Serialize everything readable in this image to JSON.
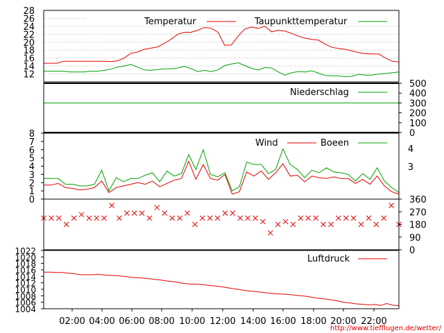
{
  "chart_data": [
    {
      "type": "line",
      "panel": "temperature",
      "ylim": [
        10,
        28
      ],
      "yticks": [
        12,
        14,
        16,
        18,
        20,
        22,
        24,
        26,
        28
      ],
      "grid": "dotted",
      "legend_placement": "top",
      "series": [
        {
          "name": "Temperatur",
          "color": "#e00000",
          "values": [
            14.7,
            14.7,
            14.7,
            15.2,
            15.2,
            15.2,
            15.2,
            15.2,
            15.2,
            15.2,
            15.1,
            15.3,
            16.0,
            17.2,
            17.5,
            18.2,
            18.5,
            18.8,
            19.7,
            20.7,
            22.0,
            22.5,
            22.5,
            23.0,
            23.7,
            23.5,
            22.5,
            19.2,
            19.3,
            21.5,
            23.3,
            23.8,
            23.5,
            24.0,
            22.6,
            23.0,
            22.8,
            22.2,
            21.5,
            21.0,
            20.7,
            20.5,
            19.5,
            18.7,
            18.4,
            18.2,
            17.8,
            17.4,
            17.1,
            17.0,
            17.0,
            16.0,
            15.2,
            15.0
          ]
        },
        {
          "name": "Taupunkttemperatur",
          "color": "#00a000",
          "values": [
            12.7,
            12.7,
            12.7,
            12.7,
            12.5,
            12.5,
            12.5,
            12.7,
            12.7,
            12.9,
            13.2,
            13.7,
            14.0,
            14.4,
            13.7,
            13.0,
            12.9,
            13.1,
            13.3,
            13.3,
            13.5,
            13.9,
            13.3,
            12.6,
            12.9,
            12.6,
            13.0,
            14.1,
            14.5,
            14.8,
            14.1,
            13.4,
            13.0,
            13.6,
            13.5,
            12.5,
            11.7,
            12.3,
            12.6,
            12.5,
            12.8,
            12.2,
            11.6,
            11.5,
            11.5,
            11.3,
            11.4,
            11.9,
            11.7,
            11.7,
            12.0,
            12.1,
            12.3,
            12.5
          ]
        }
      ]
    },
    {
      "type": "line",
      "panel": "precipitation",
      "ylim": [
        0,
        500
      ],
      "yticks": [
        0,
        100,
        200,
        300,
        400,
        500
      ],
      "legend_placement": "top-right",
      "series": [
        {
          "name": "Niederschlag",
          "color": "#00a000",
          "values": [
            300,
            300,
            300,
            300,
            300,
            300,
            300,
            300,
            300,
            300,
            300,
            300,
            300,
            300,
            300,
            300,
            300,
            300,
            300,
            300,
            300,
            300,
            300,
            300,
            300,
            300,
            300,
            300,
            300,
            300,
            300,
            300,
            300,
            300,
            300,
            300,
            300,
            300,
            300,
            300,
            300,
            300,
            300,
            300,
            300,
            300,
            300,
            300,
            300,
            300,
            300,
            300,
            300,
            300
          ]
        }
      ]
    },
    {
      "type": "line",
      "panel": "wind",
      "ylim": [
        0,
        8
      ],
      "yticks": [
        0,
        1,
        2,
        3,
        4,
        5,
        6,
        7,
        8
      ],
      "right_tick_labels": [
        "3",
        "4"
      ],
      "legend_placement": "top",
      "series": [
        {
          "name": "Wind",
          "color": "#e00000",
          "values": [
            1.7,
            1.7,
            1.9,
            1.4,
            1.3,
            1.1,
            1.2,
            1.4,
            2.2,
            0.8,
            1.4,
            1.6,
            1.8,
            2.0,
            1.8,
            2.2,
            1.5,
            1.9,
            2.3,
            2.5,
            4.6,
            2.4,
            4.2,
            2.5,
            2.3,
            3.0,
            0.6,
            0.9,
            3.3,
            2.8,
            3.4,
            2.4,
            3.2,
            4.3,
            2.8,
            2.9,
            2.1,
            2.8,
            2.6,
            2.5,
            2.7,
            2.5,
            2.5,
            1.9,
            2.4,
            1.8,
            2.8,
            1.6,
            0.9,
            0.6
          ]
        },
        {
          "name": "Boeen",
          "color": "#00a000",
          "values": [
            2.5,
            2.5,
            2.5,
            1.8,
            1.8,
            1.6,
            1.6,
            1.8,
            3.5,
            1.0,
            2.6,
            2.1,
            2.5,
            2.5,
            2.9,
            3.2,
            2.1,
            3.4,
            2.8,
            3.1,
            5.4,
            3.6,
            6.0,
            3.0,
            2.7,
            3.2,
            1.0,
            1.5,
            4.5,
            4.2,
            4.2,
            3.1,
            3.6,
            6.1,
            4.2,
            3.6,
            2.6,
            3.5,
            3.2,
            3.8,
            3.3,
            3.2,
            3.0,
            2.2,
            3.1,
            2.4,
            3.8,
            2.2,
            1.4,
            0.8
          ]
        }
      ]
    },
    {
      "type": "scatter",
      "panel": "wind direction",
      "ylim": [
        0,
        360
      ],
      "right_yticks": [
        0,
        90,
        180,
        270,
        360
      ],
      "marker": "x",
      "color": "#e00000",
      "values": [
        225,
        225,
        225,
        180,
        225,
        250,
        225,
        225,
        225,
        315,
        225,
        260,
        260,
        260,
        225,
        300,
        260,
        225,
        225,
        260,
        180,
        225,
        225,
        225,
        260,
        260,
        225,
        225,
        225,
        200,
        120,
        180,
        200,
        180,
        225,
        225,
        225,
        180,
        180,
        225,
        225,
        225,
        180,
        225,
        180,
        225,
        315,
        180
      ]
    },
    {
      "type": "line",
      "panel": "pressure",
      "ylim": [
        1004,
        1022
      ],
      "yticks": [
        1004,
        1006,
        1008,
        1010,
        1012,
        1014,
        1016,
        1018,
        1020,
        1022
      ],
      "legend_placement": "top-right",
      "series": [
        {
          "name": "Luftdruck",
          "color": "#e00000",
          "values": [
            1015.3,
            1015.3,
            1015.2,
            1015.2,
            1015.0,
            1014.8,
            1014.5,
            1014.5,
            1014.5,
            1014.6,
            1014.4,
            1014.3,
            1014.2,
            1014.0,
            1013.8,
            1013.6,
            1013.5,
            1013.3,
            1013.1,
            1012.9,
            1012.6,
            1012.4,
            1012.1,
            1011.8,
            1011.6,
            1011.6,
            1011.4,
            1011.2,
            1011.0,
            1010.8,
            1010.5,
            1010.2,
            1009.9,
            1009.6,
            1009.4,
            1009.2,
            1009.0,
            1008.8,
            1008.6,
            1008.5,
            1008.4,
            1008.2,
            1008.0,
            1007.8,
            1007.5,
            1007.2,
            1007.0,
            1006.7,
            1006.4,
            1006.0,
            1005.8,
            1005.5,
            1005.4,
            1005.2,
            1005.3,
            1005.0,
            1005.6,
            1005.1,
            1004.9
          ]
        }
      ]
    }
  ],
  "x_axis": {
    "tick_labels": [
      "02:00",
      "04:00",
      "06:00",
      "08:00",
      "10:00",
      "12:00",
      "14:00",
      "16:00",
      "18:00",
      "20:00",
      "22:00"
    ]
  },
  "credit": "http://www.tiefflugen.de/wetter/",
  "colors": {
    "frame": "#000000",
    "grid": "#b4b4b4",
    "text": "#000000",
    "credit": "#e00000"
  }
}
